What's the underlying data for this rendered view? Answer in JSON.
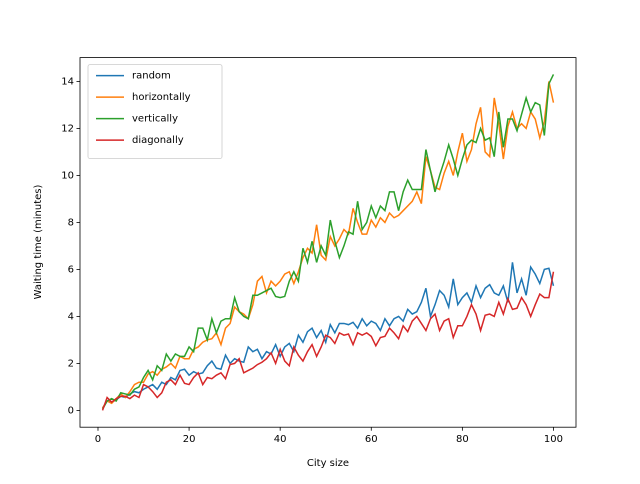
{
  "chart_data": {
    "type": "line",
    "xlabel": "City size",
    "ylabel": "Waiting time (minutes)",
    "x": [
      1,
      2,
      3,
      4,
      5,
      6,
      7,
      8,
      9,
      10,
      11,
      12,
      13,
      14,
      15,
      16,
      17,
      18,
      19,
      20,
      21,
      22,
      23,
      24,
      25,
      26,
      27,
      28,
      29,
      30,
      31,
      32,
      33,
      34,
      35,
      36,
      37,
      38,
      39,
      40,
      41,
      42,
      43,
      44,
      45,
      46,
      47,
      48,
      49,
      50,
      51,
      52,
      53,
      54,
      55,
      56,
      57,
      58,
      59,
      60,
      61,
      62,
      63,
      64,
      65,
      66,
      67,
      68,
      69,
      70,
      71,
      72,
      73,
      74,
      75,
      76,
      77,
      78,
      79,
      80,
      81,
      82,
      83,
      84,
      85,
      86,
      87,
      88,
      89,
      90,
      91,
      92,
      93,
      94,
      95,
      96,
      97,
      98,
      99,
      100
    ],
    "series": [
      {
        "name": "random",
        "color": "#1f77b4",
        "values": [
          0.1,
          0.4,
          0.35,
          0.45,
          0.6,
          0.55,
          0.7,
          0.8,
          0.75,
          0.9,
          1.0,
          1.1,
          0.9,
          1.2,
          1.1,
          1.4,
          1.3,
          1.7,
          1.75,
          1.5,
          1.65,
          1.55,
          1.6,
          1.9,
          2.1,
          1.8,
          1.75,
          2.35,
          2.0,
          2.2,
          2.1,
          2.05,
          2.7,
          2.5,
          2.6,
          2.2,
          2.5,
          2.4,
          2.8,
          2.3,
          2.7,
          2.85,
          2.5,
          3.2,
          2.9,
          3.35,
          3.5,
          3.1,
          3.4,
          2.9,
          3.65,
          3.3,
          3.7,
          3.7,
          3.65,
          3.75,
          3.5,
          3.9,
          3.6,
          3.8,
          3.7,
          3.4,
          3.9,
          3.6,
          3.9,
          4.0,
          3.8,
          4.3,
          4.1,
          4.2,
          4.6,
          5.2,
          4.0,
          4.5,
          5.1,
          4.9,
          4.4,
          5.6,
          4.5,
          4.8,
          5.0,
          4.6,
          5.3,
          4.8,
          5.2,
          5.35,
          5.0,
          4.9,
          5.3,
          4.6,
          6.3,
          5.0,
          5.6,
          4.9,
          6.1,
          5.8,
          5.4,
          6.0,
          6.05,
          5.3
        ]
      },
      {
        "name": "horizontally",
        "color": "#ff7f0e",
        "values": [
          0.1,
          0.4,
          0.3,
          0.5,
          0.7,
          0.55,
          0.8,
          1.1,
          1.2,
          1.2,
          1.55,
          1.65,
          1.5,
          1.75,
          1.85,
          2.0,
          1.8,
          2.3,
          2.2,
          2.2,
          2.6,
          2.7,
          2.9,
          3.0,
          3.05,
          3.3,
          2.8,
          3.5,
          3.7,
          4.4,
          4.2,
          4.1,
          3.9,
          4.5,
          5.5,
          5.7,
          5.0,
          5.5,
          5.3,
          5.5,
          5.8,
          5.9,
          5.4,
          5.9,
          6.5,
          6.9,
          6.7,
          7.9,
          6.6,
          6.4,
          7.4,
          7.0,
          7.3,
          7.7,
          7.5,
          8.6,
          8.0,
          7.5,
          7.5,
          8.1,
          7.8,
          8.2,
          8.0,
          8.4,
          8.2,
          8.3,
          8.5,
          8.7,
          8.9,
          9.3,
          8.8,
          10.8,
          10.2,
          9.5,
          9.4,
          10.1,
          10.6,
          10.0,
          11.0,
          11.8,
          10.6,
          11.1,
          12.2,
          12.9,
          11.0,
          10.8,
          13.3,
          12.2,
          10.7,
          12.1,
          12.7,
          12.0,
          12.2,
          12.0,
          12.7,
          12.4,
          11.6,
          12.3,
          14.0,
          13.1
        ]
      },
      {
        "name": "vertically",
        "color": "#2ca02c",
        "values": [
          0.05,
          0.4,
          0.5,
          0.4,
          0.75,
          0.7,
          0.65,
          0.9,
          1.0,
          1.4,
          1.7,
          1.3,
          1.9,
          1.7,
          2.4,
          2.1,
          2.4,
          2.3,
          2.3,
          2.7,
          2.5,
          3.5,
          3.5,
          3.0,
          3.9,
          3.3,
          3.8,
          3.9,
          3.9,
          4.8,
          4.2,
          4.0,
          3.9,
          4.9,
          4.9,
          5.0,
          5.1,
          5.2,
          4.85,
          4.8,
          4.85,
          5.5,
          5.9,
          5.5,
          6.9,
          6.3,
          7.2,
          6.3,
          7.0,
          6.6,
          8.1,
          7.2,
          6.5,
          7.0,
          7.6,
          7.5,
          8.9,
          7.7,
          8.0,
          8.7,
          8.2,
          8.7,
          8.5,
          9.3,
          9.3,
          8.5,
          9.3,
          9.8,
          9.4,
          9.4,
          9.4,
          11.1,
          10.2,
          9.3,
          10.0,
          10.6,
          11.3,
          10.7,
          10.0,
          10.7,
          11.3,
          11.5,
          11.4,
          12.0,
          11.5,
          11.6,
          10.8,
          12.7,
          11.2,
          12.4,
          12.4,
          11.9,
          12.6,
          13.3,
          12.7,
          13.1,
          13.0,
          11.7,
          13.9,
          14.3
        ]
      },
      {
        "name": "diagonally",
        "color": "#d62728",
        "values": [
          0.0,
          0.55,
          0.35,
          0.5,
          0.6,
          0.6,
          0.5,
          0.65,
          0.55,
          1.1,
          1.0,
          0.8,
          0.55,
          0.75,
          1.2,
          1.3,
          1.1,
          1.5,
          1.15,
          1.1,
          1.4,
          1.6,
          1.1,
          1.4,
          1.35,
          1.5,
          1.6,
          1.35,
          1.95,
          2.0,
          2.2,
          1.6,
          1.7,
          1.8,
          1.95,
          2.05,
          2.2,
          2.45,
          2.0,
          2.6,
          2.1,
          1.9,
          2.7,
          2.35,
          2.1,
          2.5,
          2.8,
          2.3,
          2.7,
          3.2,
          3.1,
          2.85,
          3.3,
          3.2,
          3.25,
          2.8,
          3.3,
          3.2,
          3.3,
          3.15,
          2.75,
          3.1,
          3.15,
          3.5,
          3.3,
          3.05,
          3.6,
          3.35,
          3.8,
          4.0,
          3.7,
          3.4,
          3.9,
          4.1,
          3.4,
          3.8,
          3.9,
          3.1,
          3.6,
          3.6,
          4.0,
          4.5,
          4.1,
          3.4,
          4.05,
          4.1,
          4.0,
          4.6,
          4.1,
          4.75,
          4.3,
          4.35,
          4.8,
          4.5,
          4.0,
          4.5,
          4.95,
          4.8,
          4.8,
          5.9
        ]
      }
    ],
    "xlim": [
      -3.95,
      104.95
    ],
    "xticks": [
      0,
      20,
      40,
      60,
      80,
      100
    ],
    "ylim": [
      -0.715,
      15.015
    ],
    "yticks": [
      0,
      2,
      4,
      6,
      8,
      10,
      12,
      14
    ],
    "legend": "upper left"
  }
}
